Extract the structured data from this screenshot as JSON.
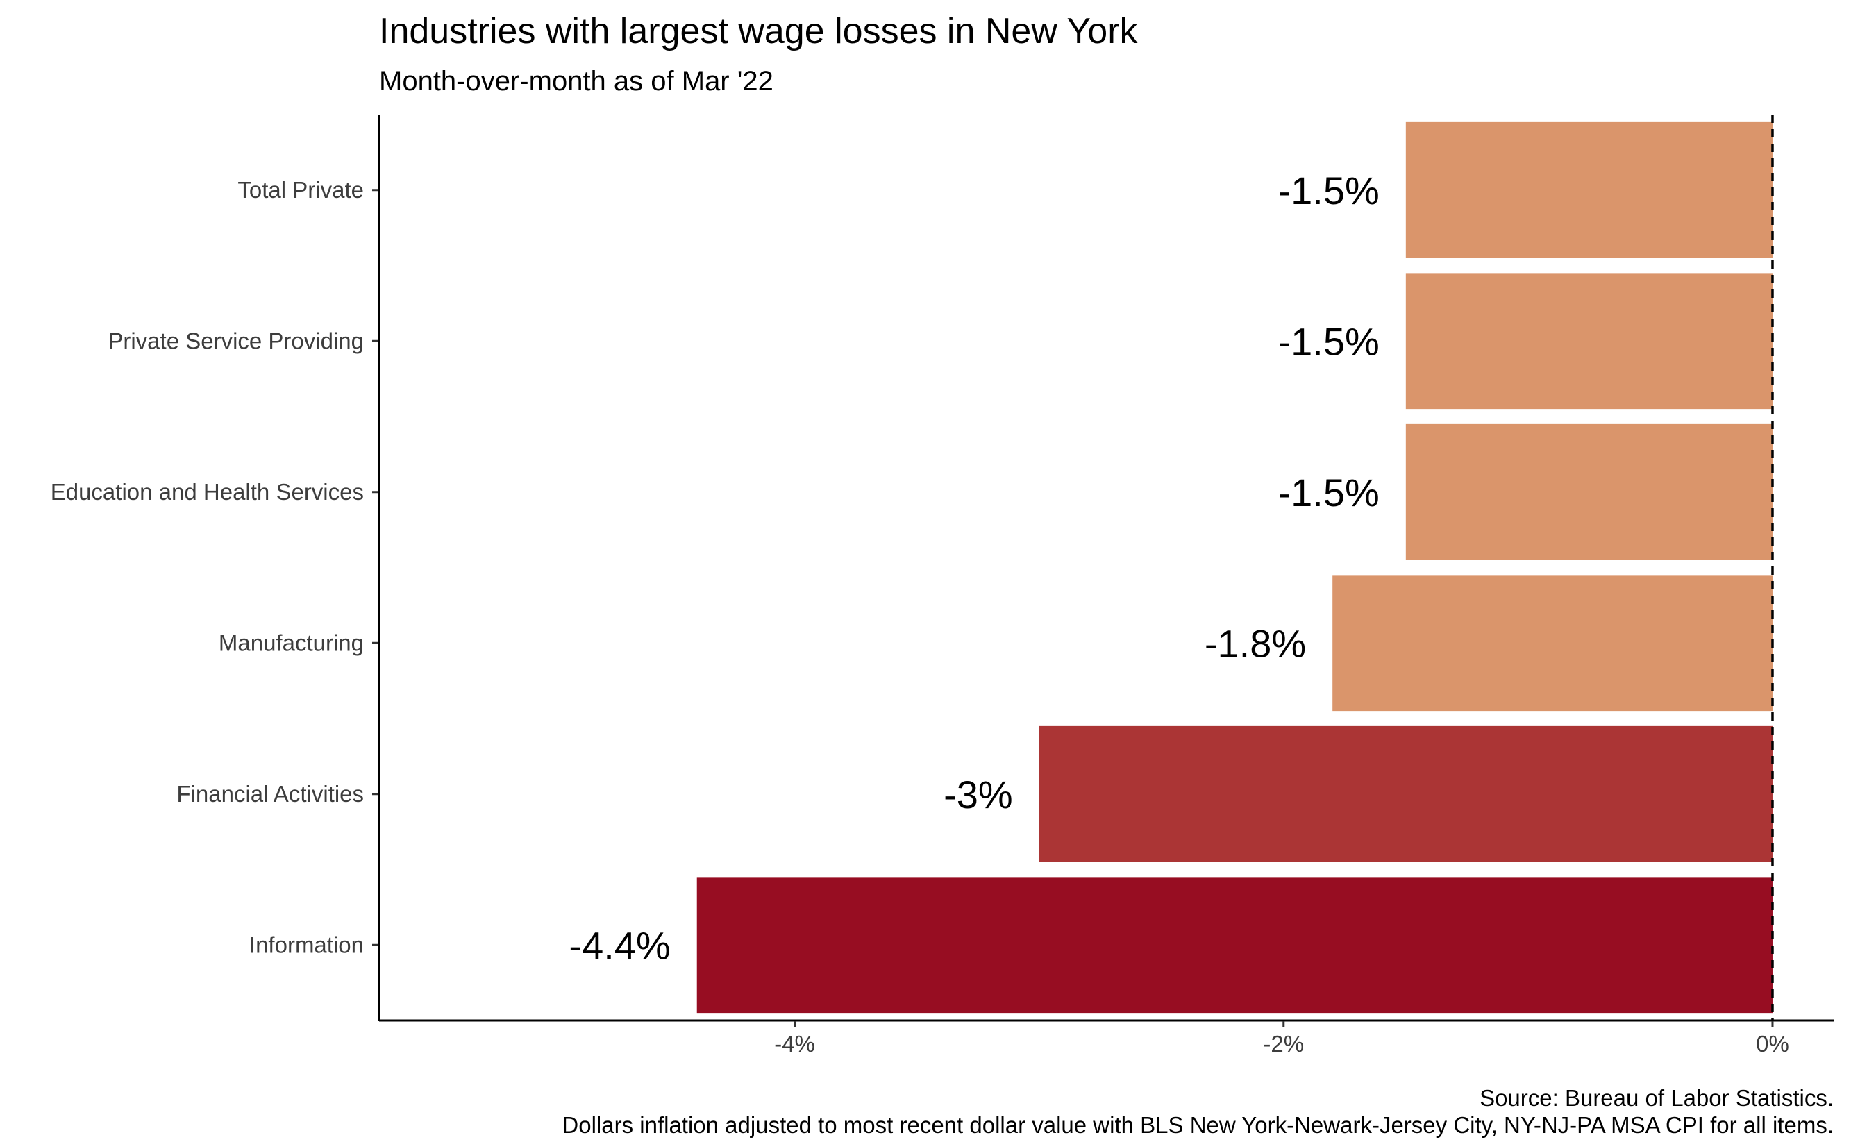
{
  "chart_data": {
    "type": "bar",
    "orientation": "horizontal",
    "title": "Industries with largest wage losses in New York",
    "subtitle": "Month-over-month as of Mar '22",
    "categories": [
      "Total Private",
      "Private Service Providing",
      "Education and Health Services",
      "Manufacturing",
      "Financial Activities",
      "Information"
    ],
    "values": [
      -1.5,
      -1.5,
      -1.5,
      -1.8,
      -3.0,
      -4.4
    ],
    "data_labels": [
      "-1.5%",
      "-1.5%",
      "-1.5%",
      "-1.8%",
      "-3%",
      "-4.4%"
    ],
    "bar_colors": [
      "#DA956B",
      "#DA956B",
      "#DA956B",
      "#DA956B",
      "#AB3535",
      "#970D22"
    ],
    "xlim": [
      -5.7,
      0.25
    ],
    "x_ticks": [
      -4,
      -2,
      0
    ],
    "x_tick_labels": [
      "-4%",
      "-2%",
      "0%"
    ],
    "reference_line": {
      "x": 0,
      "style": "dashed",
      "color": "#000000"
    },
    "xlabel": "",
    "ylabel": "",
    "grid": false,
    "legend": "none",
    "caption_lines": [
      "Source: Bureau of Labor Statistics.",
      "Dollars inflation adjusted to most recent dollar value with BLS New York-Newark-Jersey City, NY-NJ-PA MSA CPI for all items."
    ]
  }
}
